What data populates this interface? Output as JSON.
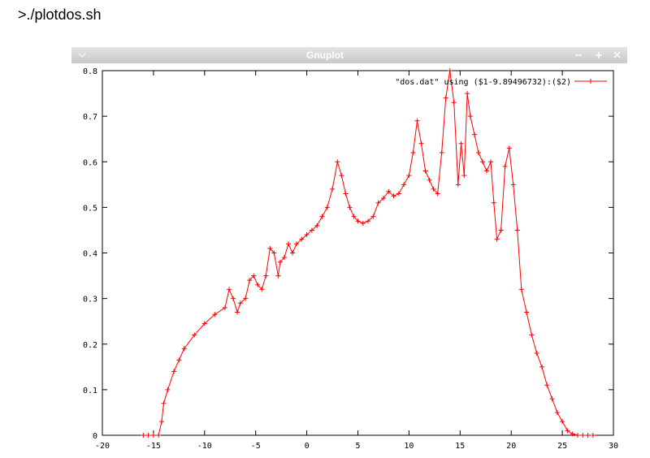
{
  "command": ">./plotdos.sh",
  "window": {
    "title": "Gnuplot"
  },
  "chart_data": {
    "type": "line",
    "x": [
      -16,
      -15.5,
      -15,
      -14.5,
      -14.2,
      -14,
      -13.6,
      -13,
      -12.5,
      -12,
      -11,
      -10,
      -9,
      -8,
      -7.6,
      -7.2,
      -6.8,
      -6.5,
      -6,
      -5.6,
      -5.2,
      -4.8,
      -4.4,
      -4,
      -3.6,
      -3.2,
      -2.8,
      -2.6,
      -2.2,
      -1.8,
      -1.4,
      -1,
      -0.5,
      0,
      0.5,
      1,
      1.5,
      2,
      2.5,
      3,
      3.4,
      3.8,
      4.2,
      4.6,
      5,
      5.5,
      6,
      6.5,
      7,
      7.5,
      8,
      8.5,
      9,
      9.5,
      10,
      10.4,
      10.8,
      11.2,
      11.6,
      12,
      12.4,
      12.8,
      13.2,
      13.6,
      14,
      14.4,
      14.8,
      15.1,
      15.4,
      15.7,
      16,
      16.4,
      16.8,
      17.2,
      17.6,
      18,
      18.3,
      18.6,
      19,
      19.4,
      19.8,
      20.2,
      20.6,
      21,
      21.5,
      22,
      22.5,
      23,
      23.5,
      24,
      24.5,
      25,
      25.5,
      26,
      26.5,
      27,
      27.5,
      28
    ],
    "series": [
      {
        "name": "\"dos.dat\" using ($1-9.89496732):($2)",
        "color": "#ff0000",
        "values": [
          0,
          0,
          0,
          0,
          0.03,
          0.07,
          0.1,
          0.14,
          0.165,
          0.19,
          0.22,
          0.245,
          0.265,
          0.28,
          0.32,
          0.3,
          0.27,
          0.29,
          0.3,
          0.34,
          0.35,
          0.33,
          0.32,
          0.35,
          0.41,
          0.4,
          0.35,
          0.38,
          0.39,
          0.42,
          0.4,
          0.42,
          0.43,
          0.44,
          0.45,
          0.46,
          0.48,
          0.5,
          0.54,
          0.6,
          0.57,
          0.53,
          0.5,
          0.48,
          0.47,
          0.465,
          0.47,
          0.48,
          0.51,
          0.52,
          0.535,
          0.525,
          0.53,
          0.55,
          0.57,
          0.62,
          0.69,
          0.64,
          0.58,
          0.56,
          0.54,
          0.53,
          0.62,
          0.74,
          0.8,
          0.73,
          0.55,
          0.64,
          0.57,
          0.75,
          0.7,
          0.66,
          0.62,
          0.6,
          0.58,
          0.6,
          0.51,
          0.43,
          0.45,
          0.59,
          0.63,
          0.55,
          0.45,
          0.32,
          0.27,
          0.22,
          0.18,
          0.15,
          0.11,
          0.08,
          0.05,
          0.03,
          0.01,
          0.003,
          0,
          0,
          0,
          0
        ]
      }
    ],
    "xlim": [
      -20,
      30
    ],
    "xticks": [
      -20,
      -15,
      -10,
      -5,
      0,
      5,
      10,
      15,
      20,
      25,
      30
    ],
    "ylim": [
      0,
      0.8
    ],
    "yticks": [
      0,
      0.1,
      0.2,
      0.3,
      0.4,
      0.5,
      0.6,
      0.7,
      0.8
    ],
    "grid": false,
    "legend": "top-right",
    "markers": true
  }
}
